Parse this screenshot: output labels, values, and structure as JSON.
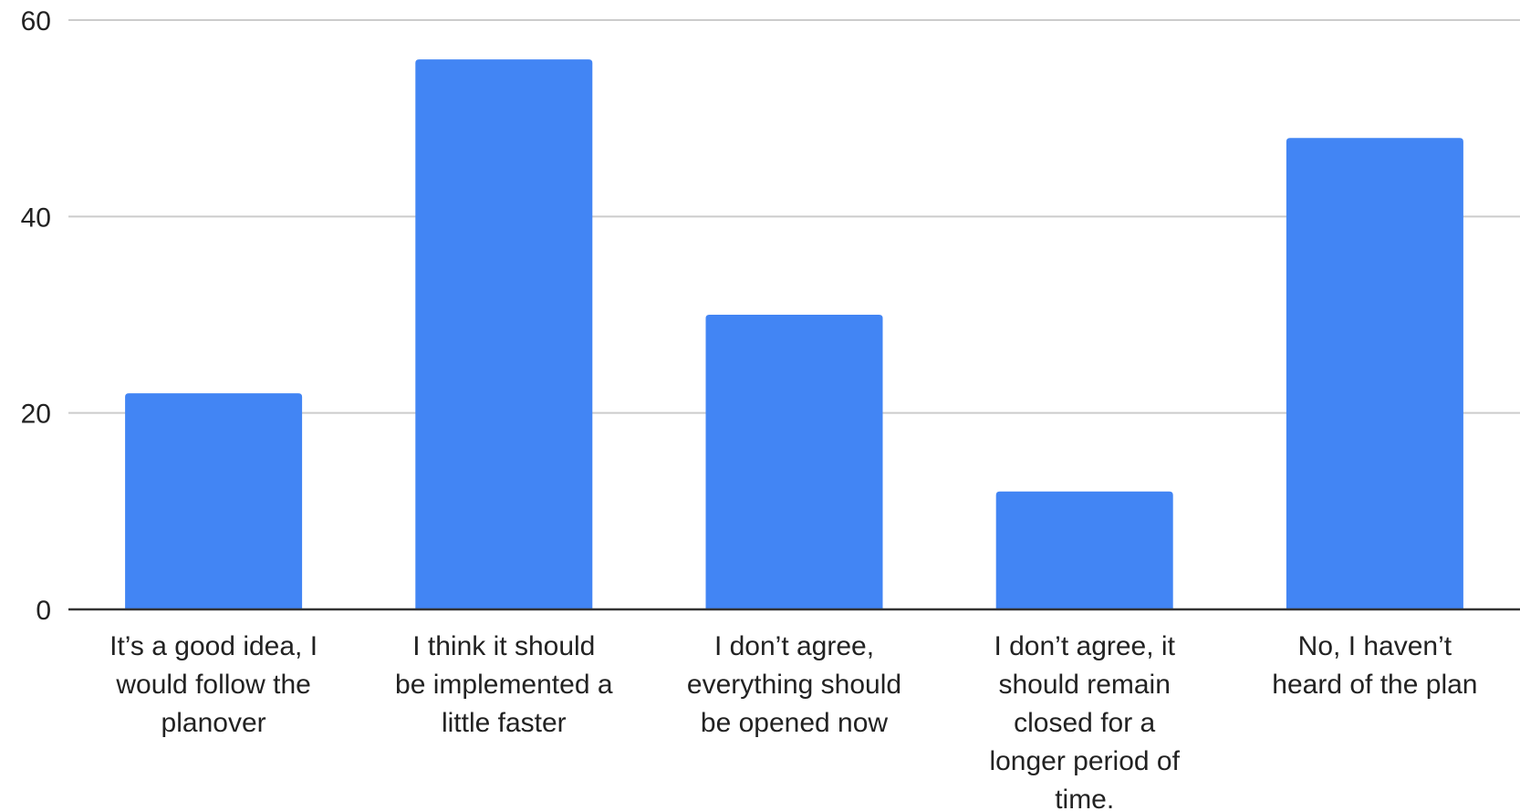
{
  "chart_data": {
    "type": "bar",
    "title": "",
    "xlabel": "",
    "ylabel": "",
    "ylim": [
      0,
      60
    ],
    "yticks": [
      0,
      20,
      40,
      60
    ],
    "grid": true,
    "legend": "none",
    "bar_color": "#4285f4",
    "gridline_color": "#cccccc",
    "baseline_color": "#333333",
    "categories": [
      "It’s a good idea, I would follow the planover",
      "I think it should be implemented a little faster",
      "I don’t agree, everything should be opened now",
      "I don’t agree, it should remain closed for a longer period of time.",
      "No, I haven’t heard of the plan"
    ],
    "category_label_lines": [
      [
        "It’s a good idea, I",
        "would follow the",
        "planover"
      ],
      [
        "I think it should",
        "be implemented a",
        "little faster"
      ],
      [
        "I don’t agree,",
        "everything should",
        "be opened now"
      ],
      [
        "I don’t agree, it",
        "should remain",
        "closed for a",
        "longer period of",
        "time."
      ],
      [
        "No, I haven’t",
        "heard of the plan"
      ]
    ],
    "values": [
      22,
      56,
      30,
      12,
      48
    ]
  }
}
